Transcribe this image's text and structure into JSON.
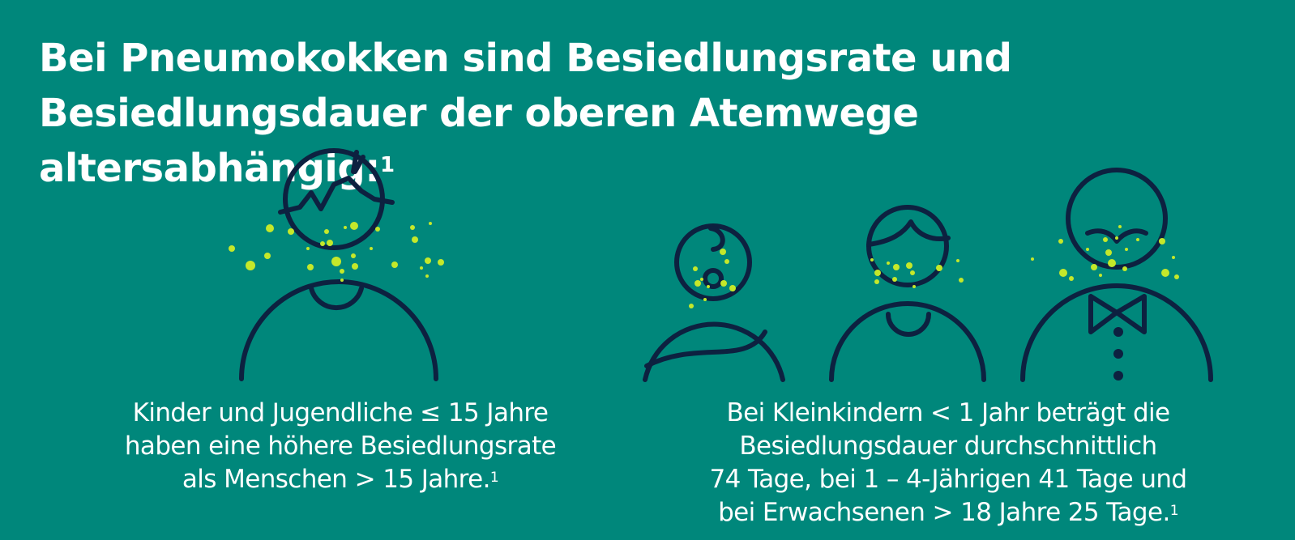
{
  "title": {
    "line1": "Bei Pneumokokken sind Besiedlungsrate und",
    "line2": "Besiedlungsdauer der oberen Atemwege altersabhängig:",
    "footnote": "1"
  },
  "left_caption": {
    "line1": "Kinder und Jugendliche ≤ 15 Jahre",
    "line2": "haben eine höhere Besiedlungsrate",
    "line3": "als Menschen > 15 Jahre.",
    "footnote": "1"
  },
  "right_caption": {
    "line1": "Bei Kleinkindern < 1 Jahr beträgt die",
    "line2": "Besiedlungsdauer durchschnittlich",
    "line3": "74 Tage, bei 1 – 4-Jährigen 41 Tage und",
    "line4": "bei Erwachsenen > 18 Jahre 25 Tage.",
    "footnote": "1"
  },
  "colors": {
    "background": "#00877b",
    "line": "#0d2140",
    "dots": "#c4e82a",
    "text": "#ffffff"
  },
  "icons": [
    "child-icon",
    "baby-icon",
    "toddler-icon",
    "adult-icon"
  ]
}
